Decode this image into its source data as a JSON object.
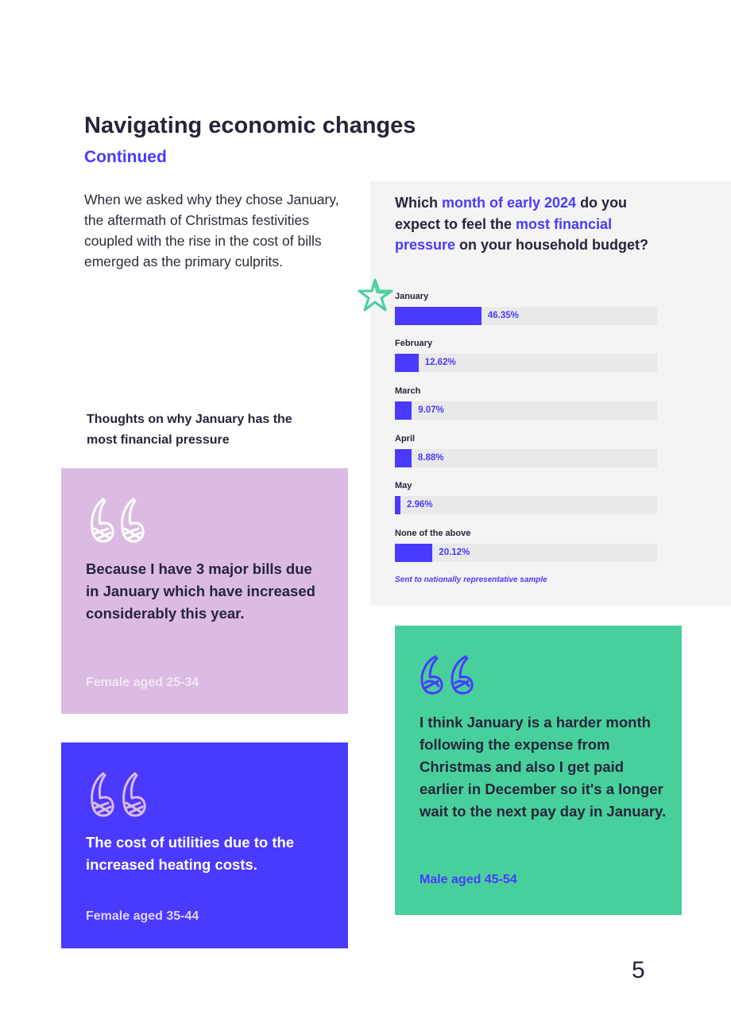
{
  "header": {
    "title": "Navigating economic changes",
    "subtitle": "Continued"
  },
  "intro": "When we asked why they chose January, the aftermath of Christmas festivities coupled with the rise in the cost of bills emerged as the primary culprits.",
  "thoughts_heading": "Thoughts on why January has the most financial pressure",
  "chart": {
    "question_parts": [
      {
        "text": "Which ",
        "highlight": false
      },
      {
        "text": "month of early 2024",
        "highlight": true
      },
      {
        "text": " do you expect to feel the ",
        "highlight": false
      },
      {
        "text": "most financial pressure",
        "highlight": true
      },
      {
        "text": " on your household budget?",
        "highlight": false
      }
    ],
    "note": "Sent to nationally representative sample",
    "accent_color": "#4a3aff",
    "track_color": "#e9e9e9",
    "highlight_marker": "star-icon"
  },
  "chart_data": {
    "type": "bar",
    "orientation": "horizontal",
    "categories": [
      "January",
      "February",
      "March",
      "April",
      "May",
      "None of the above"
    ],
    "values": [
      46.35,
      12.62,
      9.07,
      8.88,
      2.96,
      20.12
    ],
    "value_labels": [
      "46.35%",
      "12.62%",
      "9.07%",
      "8.88%",
      "2.96%",
      "20.12%"
    ],
    "unit": "%",
    "xlim": [
      0,
      100
    ],
    "title": "",
    "xlabel": "",
    "ylabel": "",
    "grid": false
  },
  "quotes": [
    {
      "text": "Because I have 3 major bills due in January which have increased considerably this year.",
      "attribution": "Female aged 25-34",
      "color": "#dcbbe2"
    },
    {
      "text": "The cost of utilities due to the increased heating costs.",
      "attribution": "Female aged 35-44",
      "color": "#4a3aff"
    },
    {
      "text": "I think January is a harder month following the expense from Christmas and also I get paid earlier in December so it's a longer wait to the next pay day in January.",
      "attribution": "Male aged 45-54",
      "color": "#48d09c"
    }
  ],
  "page_number": "5"
}
